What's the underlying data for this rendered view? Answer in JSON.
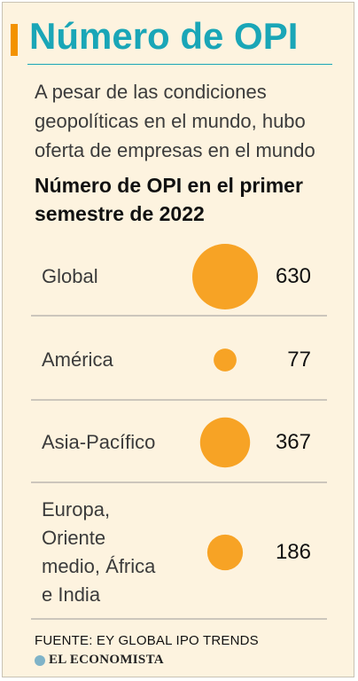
{
  "header": {
    "title": "Número de OPI",
    "subtitle": "A pesar de las condiciones geopolíticas en el mundo, hubo oferta de empresas en el mundo"
  },
  "chart_data": {
    "type": "bubble",
    "title": "Número de OPI en el primer semestre de 2022",
    "categories": [
      "Global",
      "América",
      "Asia-Pacífico",
      "Europa,\nOriente\nmedio, África\ne India"
    ],
    "values": [
      630,
      77,
      367,
      186
    ],
    "value_labels": [
      "630",
      "77",
      "367",
      "186"
    ],
    "bubble_color": "#f7a325",
    "divider_color": "#9a9a9a"
  },
  "footer": {
    "source": "FUENTE:  EY GLOBAL IPO TRENDS",
    "brand": "EL ECONOMISTA",
    "brand_icon": "globe-icon"
  }
}
